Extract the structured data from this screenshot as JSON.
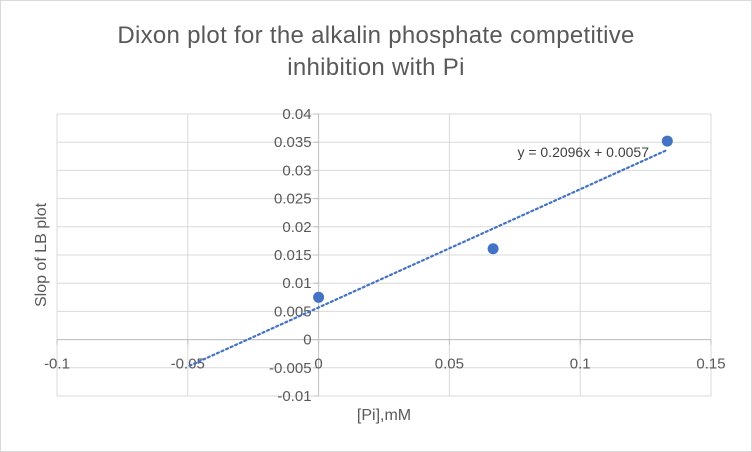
{
  "chart_data": {
    "type": "scatter",
    "title_lines": [
      "Dixon plot for the alkalin phosphate competitive",
      "inhibition with Pi"
    ],
    "xlabel": "[Pi],mM",
    "ylabel": "Slop of LB plot",
    "xlim": [
      -0.1,
      0.15
    ],
    "ylim": [
      -0.01,
      0.04
    ],
    "x_ticks": [
      -0.1,
      -0.05,
      0,
      0.05,
      0.1,
      0.15
    ],
    "x_tick_labels": [
      "-0.1",
      "-0.05",
      "0",
      "0.05",
      "0.1",
      "0.15"
    ],
    "y_ticks": [
      -0.01,
      -0.005,
      0,
      0.005,
      0.01,
      0.015,
      0.02,
      0.025,
      0.03,
      0.035,
      0.04
    ],
    "y_tick_labels": [
      "-0.01",
      "-0.005",
      "0",
      "0.005",
      "0.01",
      "0.015",
      "0.02",
      "0.025",
      "0.03",
      "0.035",
      "0.04"
    ],
    "grid": true,
    "series": [
      {
        "x": [
          0,
          0.0667,
          0.1333
        ],
        "y": [
          0.0075,
          0.0161,
          0.0352
        ],
        "color": "#4472c4"
      }
    ],
    "trendline": {
      "slope": 0.2096,
      "intercept": 0.0057,
      "x_range": [
        -0.0493,
        0.1333
      ],
      "equation_label": "y = 0.2096x + 0.0057",
      "color": "#4472c4",
      "style": "dotted"
    }
  }
}
